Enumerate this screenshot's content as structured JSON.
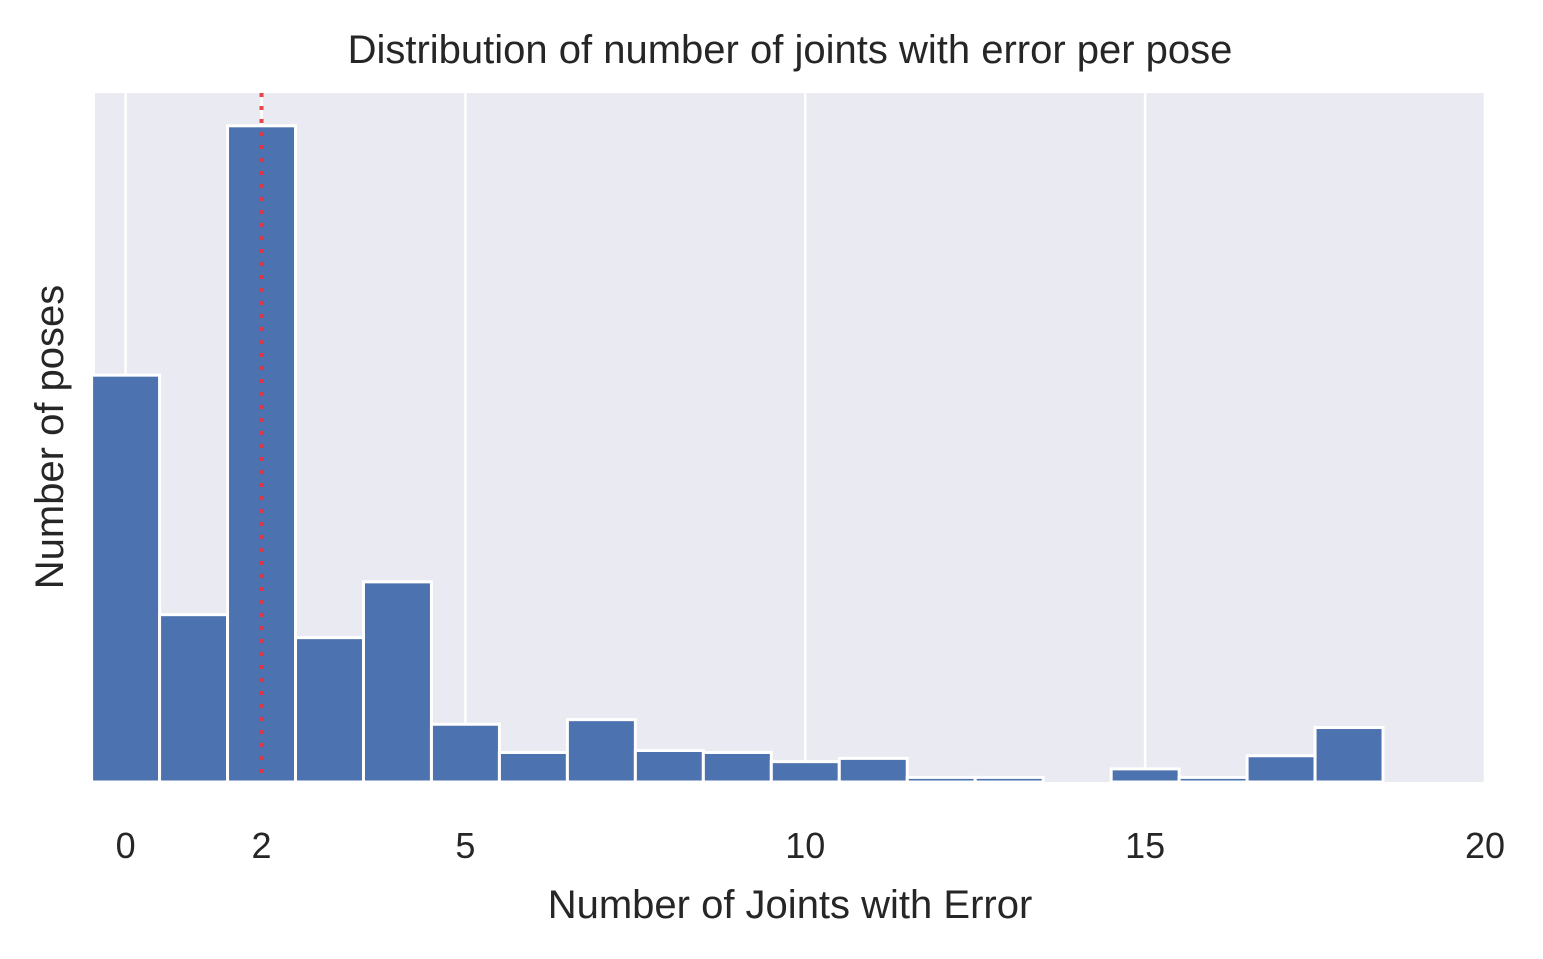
{
  "chart_data": {
    "type": "bar",
    "title": "Distribution of number of joints with error per pose",
    "xlabel": "Number of Joints with Error",
    "ylabel": "Number of poses",
    "xlim": [
      -0.45,
      20
    ],
    "ylim": [
      0,
      1.05
    ],
    "grid": true,
    "x_ticks": [
      {
        "value": 0,
        "label": "0"
      },
      {
        "value": 2,
        "label": "2"
      },
      {
        "value": 5,
        "label": "5"
      },
      {
        "value": 10,
        "label": "10"
      },
      {
        "value": 15,
        "label": "15"
      },
      {
        "value": 20,
        "label": "20"
      }
    ],
    "bins": [
      {
        "start": -0.5,
        "end": 0.5,
        "value": 0.62
      },
      {
        "start": 0.5,
        "end": 1.5,
        "value": 0.255
      },
      {
        "start": 1.5,
        "end": 2.5,
        "value": 1.0
      },
      {
        "start": 2.5,
        "end": 3.5,
        "value": 0.22
      },
      {
        "start": 3.5,
        "end": 4.5,
        "value": 0.305
      },
      {
        "start": 4.5,
        "end": 5.5,
        "value": 0.088
      },
      {
        "start": 5.5,
        "end": 6.5,
        "value": 0.045
      },
      {
        "start": 6.5,
        "end": 7.5,
        "value": 0.095
      },
      {
        "start": 7.5,
        "end": 8.5,
        "value": 0.048
      },
      {
        "start": 8.5,
        "end": 9.5,
        "value": 0.045
      },
      {
        "start": 9.5,
        "end": 10.5,
        "value": 0.031
      },
      {
        "start": 10.5,
        "end": 11.5,
        "value": 0.036
      },
      {
        "start": 11.5,
        "end": 12.5,
        "value": 0.007
      },
      {
        "start": 12.5,
        "end": 13.5,
        "value": 0.007
      },
      {
        "start": 13.5,
        "end": 14.5,
        "value": 0.0
      },
      {
        "start": 14.5,
        "end": 15.5,
        "value": 0.02
      },
      {
        "start": 15.5,
        "end": 16.5,
        "value": 0.007
      },
      {
        "start": 16.5,
        "end": 17.5,
        "value": 0.04
      },
      {
        "start": 17.5,
        "end": 18.5,
        "value": 0.083
      }
    ],
    "reference_line": {
      "x": 2,
      "style": "dotted",
      "color": "#e8323c"
    },
    "colors": {
      "bar": "#4c72b0",
      "background": "#eaeaf2",
      "grid": "#ffffff",
      "reference": "#e8323c"
    }
  }
}
